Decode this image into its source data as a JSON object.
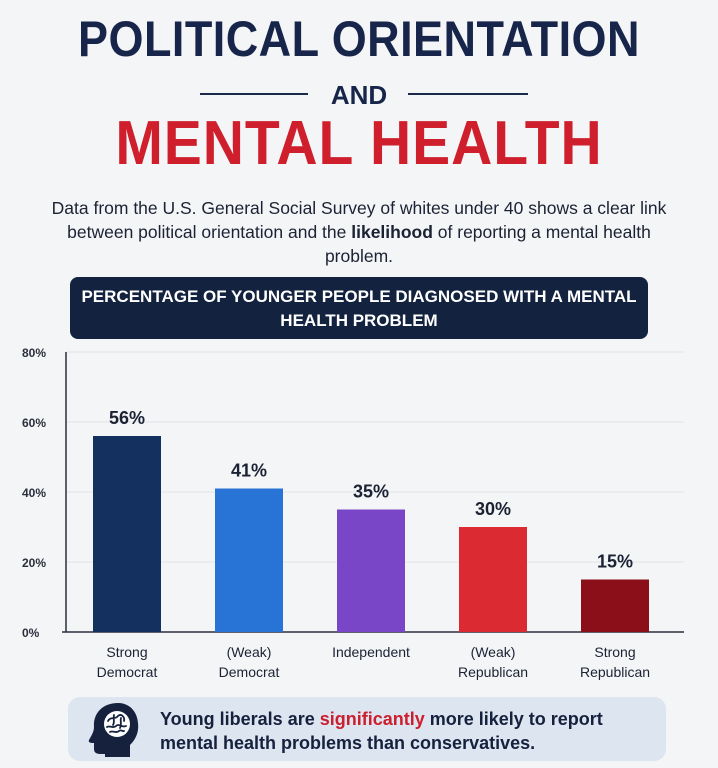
{
  "header": {
    "title_line1": "POLITICAL ORIENTATION",
    "connector": "AND",
    "title_line2": "MENTAL HEALTH",
    "subtitle_part1": "Data from the U.S. General Social Survey of whites under 40 shows a clear link between political orientation and the ",
    "subtitle_highlight": "likelihood",
    "subtitle_part2": " of reporting a mental health problem."
  },
  "chart_data": {
    "type": "bar",
    "title": "PERCENTAGE OF YOUNGER PEOPLE DIAGNOSED WITH A MENTAL HEALTH PROBLEM",
    "categories": [
      [
        "Strong",
        "Democrat"
      ],
      [
        "(Weak)",
        "Democrat"
      ],
      [
        "Independent"
      ],
      [
        "(Weak)",
        "Republican"
      ],
      [
        "Strong",
        "Republican"
      ]
    ],
    "values": [
      56,
      41,
      35,
      30,
      15
    ],
    "data_labels": [
      "56%",
      "41%",
      "35%",
      "30%",
      "15%"
    ],
    "bar_colors": [
      "#14305f",
      "#2874d6",
      "#7a46c8",
      "#dc2a33",
      "#8a0f18"
    ],
    "yticks": [
      0,
      20,
      40,
      60,
      80
    ],
    "ytick_labels": [
      "0%",
      "20%",
      "40%",
      "60%",
      "80%"
    ],
    "ylim": [
      0,
      80
    ],
    "grid": true,
    "xlabel": "",
    "ylabel": ""
  },
  "callout": {
    "icon": "head-brain-icon",
    "text_part1": "Young liberals are ",
    "text_highlight": "significantly",
    "text_part2": " more likely to report mental health problems than conservatives."
  }
}
